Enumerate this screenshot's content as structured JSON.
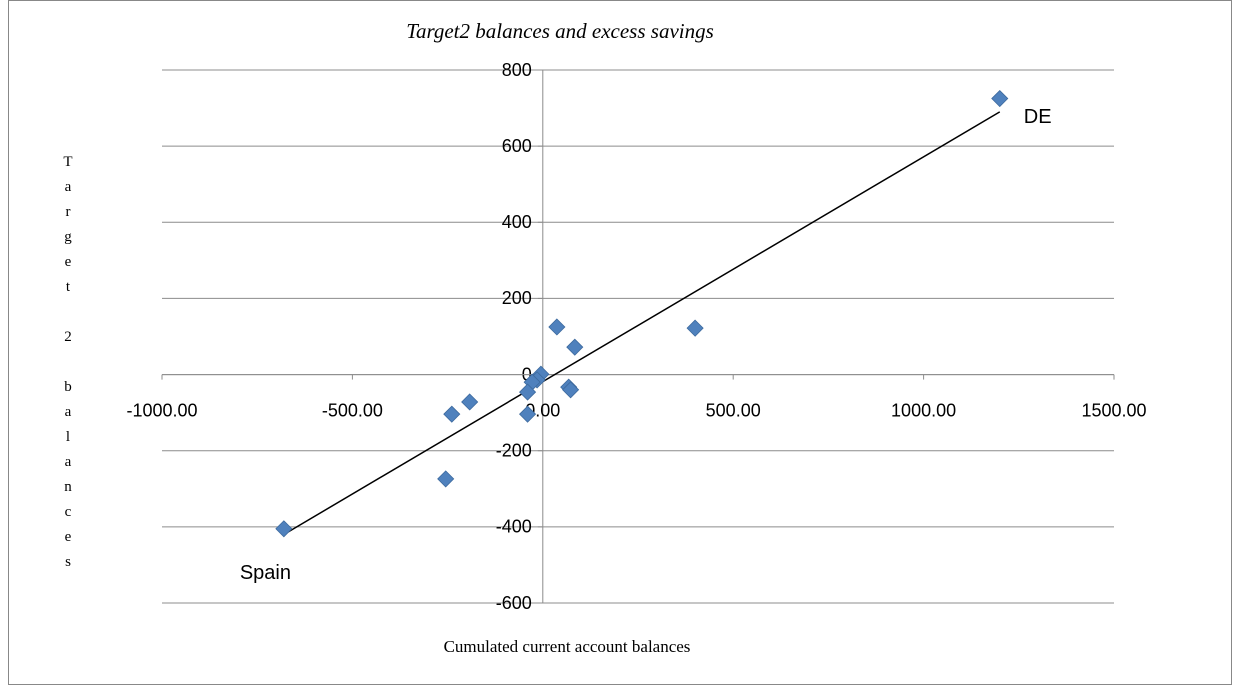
{
  "chart_data": {
    "type": "scatter",
    "title": "Target2 balances and excess savings",
    "x_label": "Cumulated current account balances",
    "y_label": "Target 2 balances",
    "x": [
      -680,
      1200,
      400,
      37,
      84,
      -5,
      -15,
      -28,
      -40,
      -40,
      68,
      73,
      -192,
      -239,
      -255
    ],
    "values": [
      -405,
      725,
      122,
      125,
      72,
      1,
      -14,
      -20,
      -46,
      -104,
      -33,
      -40,
      -72,
      -104,
      -274
    ],
    "color": "#4f81bd",
    "trendline": {
      "x": [
        -680,
        1200
      ],
      "values": [
        -420,
        690
      ],
      "color": "#000000"
    },
    "annotations": [
      {
        "text": "Spain",
        "x": -680,
        "y": -405
      },
      {
        "text": "DE",
        "x": 1200,
        "y": 725
      }
    ],
    "xlim": [
      -1000,
      1500
    ],
    "xticks": [
      {
        "value": -1000,
        "label": "-1000.00"
      },
      {
        "value": -500,
        "label": "-500.00"
      },
      {
        "value": 0,
        "label": "0.00"
      },
      {
        "value": 500,
        "label": "500.00"
      },
      {
        "value": 1000,
        "label": "1000.00"
      },
      {
        "value": 1500,
        "label": "1500.00"
      }
    ],
    "ylim": [
      -600,
      800
    ],
    "yticks": [
      -600,
      -400,
      -200,
      0,
      200,
      400,
      600,
      800
    ],
    "grid": true
  }
}
